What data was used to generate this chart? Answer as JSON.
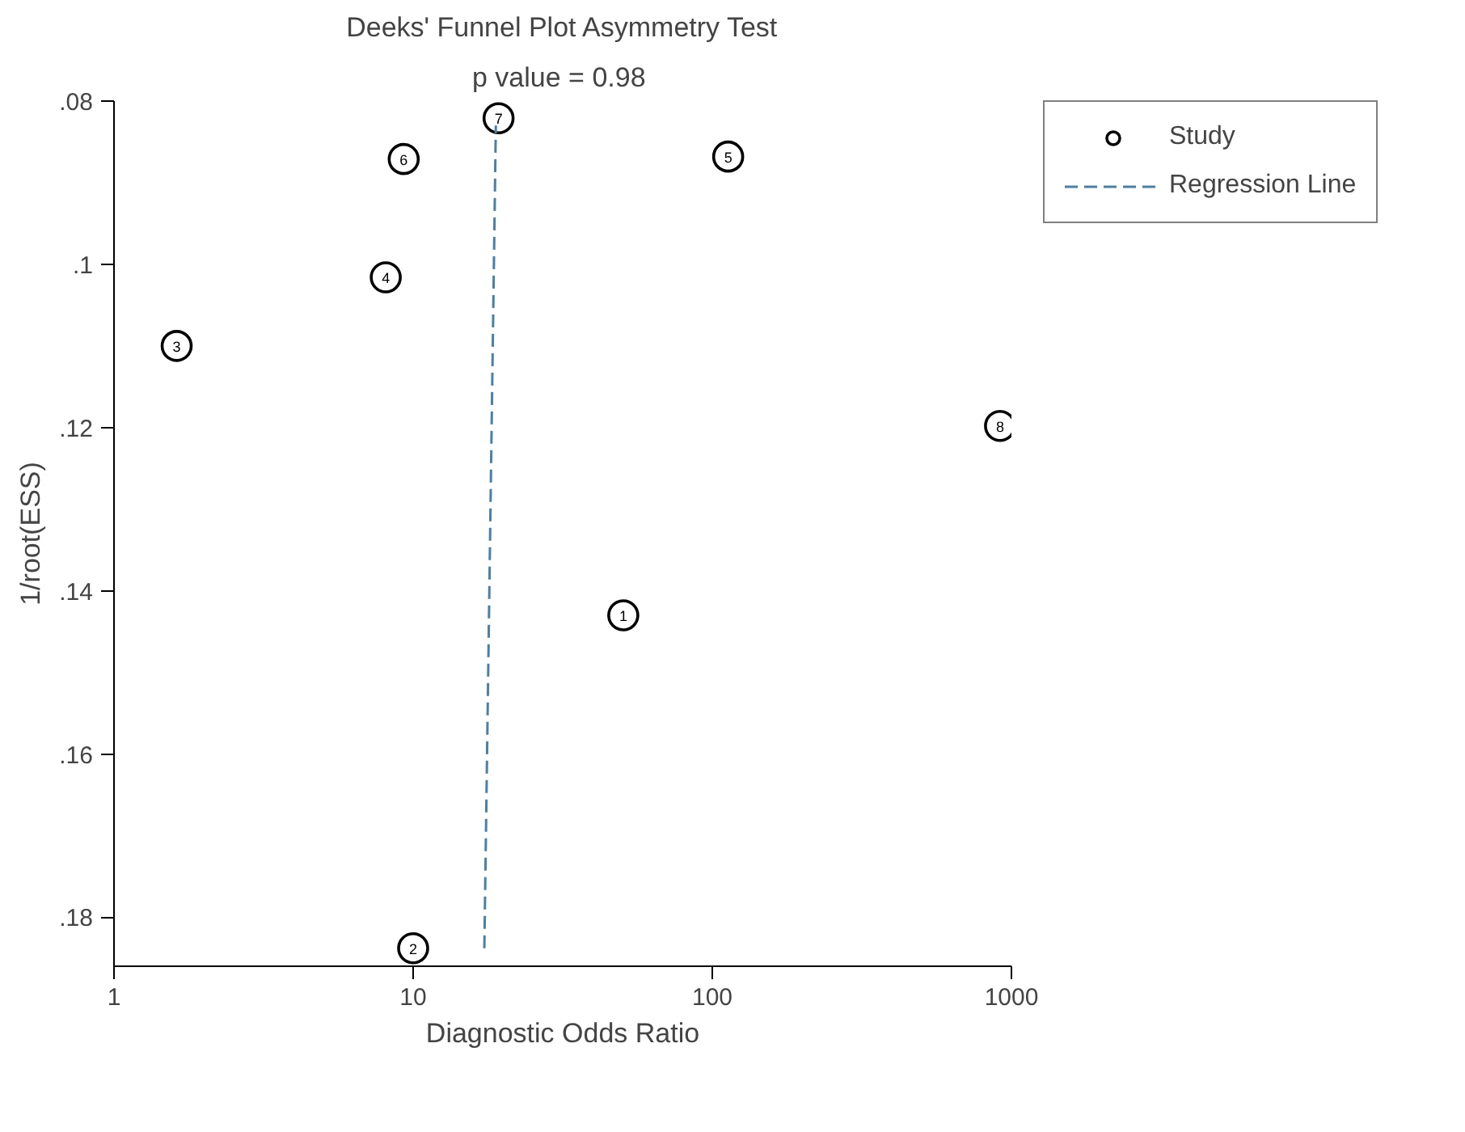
{
  "chart_data": {
    "type": "scatter",
    "title": "Deeks' Funnel Plot Asymmetry Test",
    "subtitle": "p value =  0.98",
    "xlabel": "Diagnostic Odds Ratio",
    "ylabel": "1/root(ESS)",
    "log": "x",
    "xlim": [
      1,
      1000
    ],
    "xticks": [
      1,
      10,
      100,
      1000
    ],
    "ylim": [
      0.186,
      0.08
    ],
    "yticks": [
      {
        "value": 0.08,
        "label": ".08"
      },
      {
        "value": 0.1,
        "label": ".1"
      },
      {
        "value": 0.12,
        "label": ".12"
      },
      {
        "value": 0.14,
        "label": ".14"
      },
      {
        "value": 0.16,
        "label": ".16"
      },
      {
        "value": 0.18,
        "label": ".18"
      }
    ],
    "grid": false,
    "legend": "top right",
    "series": [
      {
        "name": "Study",
        "color": "#000000",
        "marker": "circle",
        "x": [
          50.4,
          10,
          1.62,
          8.1,
          113,
          9.3,
          19.3,
          916
        ],
        "values": [
          0.143,
          0.1838,
          0.11,
          0.1016,
          0.0868,
          0.0871,
          0.0821,
          0.1198
        ]
      },
      {
        "name": "Regression Line",
        "type": "line",
        "color": "#4a7fa8",
        "marker": "none",
        "line_style": "dashed",
        "x": [
          17.3,
          18.9
        ],
        "values": [
          0.1838,
          0.083
        ]
      }
    ],
    "annotations": [
      {
        "text": "1",
        "x": 50.4,
        "y": 0.143
      },
      {
        "text": "2",
        "x": 10,
        "y": 0.1838
      },
      {
        "text": "3",
        "x": 1.62,
        "y": 0.11
      },
      {
        "text": "4",
        "x": 8.1,
        "y": 0.1016
      },
      {
        "text": "5",
        "x": 113,
        "y": 0.0868
      },
      {
        "text": "6",
        "x": 9.3,
        "y": 0.0871
      },
      {
        "text": "7",
        "x": 19.3,
        "y": 0.0821
      },
      {
        "text": "8",
        "x": 916,
        "y": 0.1198
      }
    ]
  }
}
